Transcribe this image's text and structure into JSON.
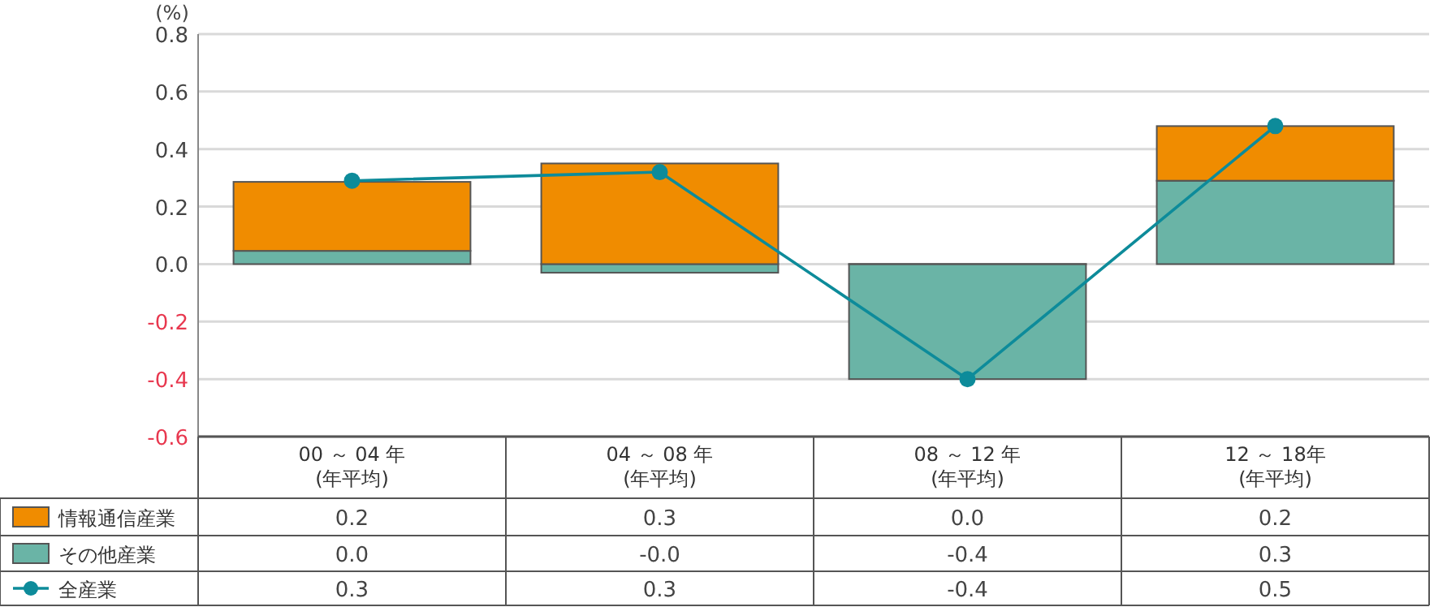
{
  "chart_data": {
    "type": "bar",
    "stacked": true,
    "ylabel": "(%)",
    "categories": [
      "00 ～ 04 年\n(年平均)",
      "04 ～ 08 年\n(年平均)",
      "08 ～ 12 年\n(年平均)",
      "12 ～ 18年\n(年平均)"
    ],
    "series": [
      {
        "name": "その他産業",
        "color": "#6ab4a6",
        "values": [
          0.046,
          -0.03,
          -0.4,
          0.29
        ],
        "value_labels": [
          "0.0",
          "-0.0",
          "-0.4",
          "0.3"
        ]
      },
      {
        "name": "情報通信産業",
        "color": "#f08c00",
        "values": [
          0.24,
          0.35,
          0.0,
          0.19
        ],
        "value_labels": [
          "0.2",
          "0.3",
          "0.0",
          "0.2"
        ]
      },
      {
        "name": "全産業",
        "type": "line",
        "marker": "circle",
        "color": "#0d8b9a",
        "values": [
          0.29,
          0.32,
          -0.4,
          0.48
        ],
        "value_labels": [
          "0.3",
          "0.3",
          "-0.4",
          "0.5"
        ]
      }
    ],
    "ylim": [
      -0.6,
      0.8
    ],
    "yticks": [
      {
        "value": -0.6,
        "label": "-0.6"
      },
      {
        "value": -0.4,
        "label": "-0.4"
      },
      {
        "value": -0.2,
        "label": "-0.2"
      },
      {
        "value": 0,
        "label": "0.0"
      },
      {
        "value": 0.2,
        "label": "0.2"
      },
      {
        "value": 0.4,
        "label": "0.4"
      },
      {
        "value": 0.6,
        "label": "0.6"
      },
      {
        "value": 0.8,
        "label": "0.8"
      }
    ],
    "grid": "y",
    "legend": "bottom"
  }
}
